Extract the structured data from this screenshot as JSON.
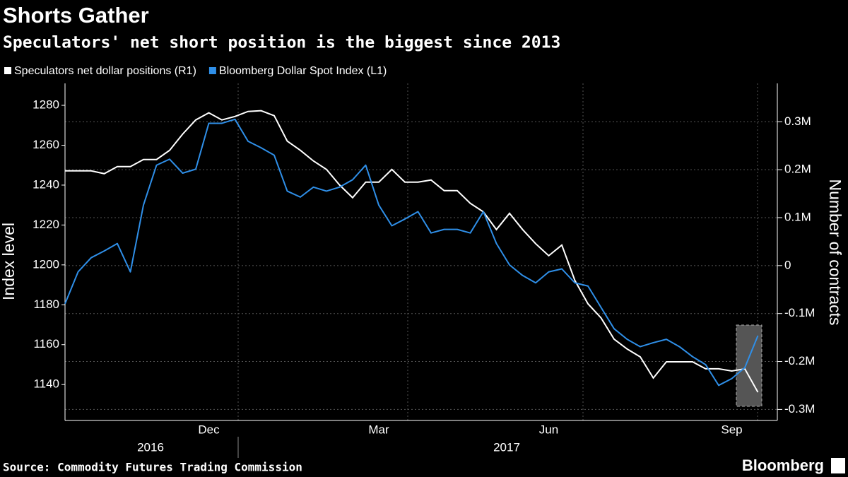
{
  "chart_data": {
    "type": "line",
    "title": "Shorts Gather",
    "subtitle": "Speculators' net short position is the biggest since 2013",
    "source": "Source: Commodity Futures Trading Commission",
    "logo": "Bloomberg",
    "ylabel": "Index level",
    "y2label": "Number of contracts",
    "categories": [
      null,
      null,
      null,
      null,
      null,
      null,
      null,
      null,
      null,
      null,
      null,
      "Dec",
      null,
      null,
      null,
      null,
      null,
      null,
      null,
      null,
      null,
      null,
      null,
      null,
      "Mar",
      null,
      null,
      null,
      null,
      null,
      null,
      null,
      null,
      null,
      null,
      null,
      null,
      "Jun",
      null,
      null,
      null,
      null,
      null,
      null,
      null,
      null,
      null,
      null,
      null,
      null,
      null,
      "Sep",
      null,
      null
    ],
    "year_labels": [
      "2016",
      "2017"
    ],
    "series": [
      {
        "name": "Speculators net dollar positions (R1)",
        "color": "#ffffff",
        "axis": "y2",
        "values": [
          197600,
          197600,
          197600,
          191700,
          206500,
          206500,
          221200,
          221200,
          240400,
          274300,
          303800,
          318600,
          303800,
          311000,
          321500,
          323000,
          312700,
          259600,
          240400,
          218300,
          200600,
          168100,
          141600,
          174000,
          174000,
          200600,
          174000,
          174000,
          178500,
          156300,
          156300,
          129800,
          112100,
          75200,
          109100,
          75200,
          45700,
          20600,
          42800,
          -31000,
          -79600,
          -109100,
          -153400,
          -174000,
          -190300,
          -234500,
          -200600,
          -200600,
          -200600,
          -215300,
          -215300,
          -219800,
          -215300,
          -264000
        ]
      },
      {
        "name": "Bloomberg Dollar Spot Index (L1)",
        "color": "#2f8fe8",
        "values": [
          1180.5,
          1196.5,
          1203.6,
          1207,
          1210.7,
          1196.5,
          1230,
          1250,
          1253,
          1246,
          1248,
          1271,
          1271,
          1273,
          1262,
          1258.7,
          1255,
          1237,
          1234,
          1239,
          1237,
          1239,
          1242.7,
          1250,
          1230,
          1219.6,
          1223,
          1226.7,
          1216,
          1217.8,
          1217.8,
          1216,
          1226.7,
          1210.7,
          1200,
          1194.7,
          1191,
          1196.5,
          1198,
          1191,
          1189.4,
          1178.7,
          1168,
          1162.7,
          1159,
          1161,
          1162.7,
          1159,
          1154,
          1150,
          1139.6,
          1143,
          1148.5,
          1164.5
        ]
      }
    ],
    "ylim": [
      1122,
      1291
    ],
    "yticks": [
      1140,
      1160,
      1180,
      1200,
      1220,
      1240,
      1260,
      1280
    ],
    "y2lim": [
      -323000,
      380000
    ],
    "y2ticks": [
      {
        "value": -300000,
        "label": "-0.3M"
      },
      {
        "value": -200000,
        "label": "-0.2M"
      },
      {
        "value": -100000,
        "label": "-0.1M"
      },
      0,
      {
        "value": 100000,
        "label": "0.1M"
      },
      {
        "value": 200000,
        "label": "0.2M"
      },
      {
        "value": 300000,
        "label": "0.3M"
      }
    ],
    "grid": true
  }
}
